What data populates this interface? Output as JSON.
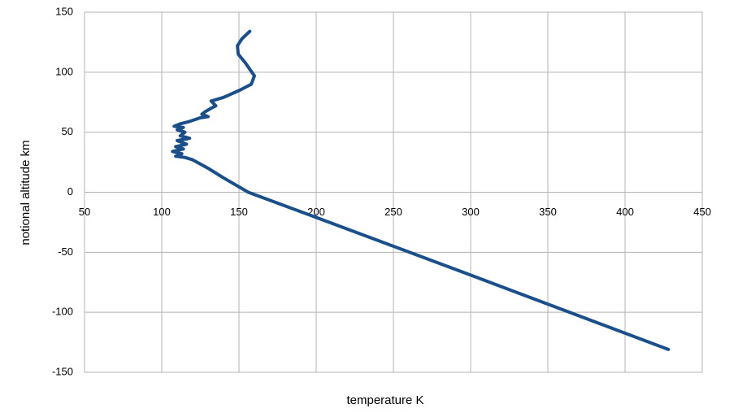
{
  "chart_data": {
    "type": "line",
    "x_label": "temperature K",
    "y_label": "notional altitude km",
    "x": [
      157,
      152,
      149,
      149.5,
      154,
      160,
      158,
      150.5,
      140,
      132,
      135,
      132,
      128,
      126,
      130,
      125,
      118,
      112,
      108,
      114,
      110,
      115,
      112,
      118,
      110,
      116,
      109,
      114,
      107,
      113,
      109,
      115,
      120,
      130,
      140,
      156,
      200,
      300,
      428
    ],
    "values": [
      134,
      128,
      122,
      115,
      108,
      97,
      90,
      85,
      79,
      76,
      72,
      70,
      67,
      65,
      63,
      62,
      59,
      57,
      55,
      54,
      52,
      50,
      47,
      45,
      43,
      40,
      38,
      36,
      34,
      32,
      30,
      29,
      27,
      20,
      12,
      0,
      -21,
      -69,
      -131
    ],
    "color": "#1b4f8a",
    "xlim": [
      50,
      450
    ],
    "xticks": [
      50,
      100,
      150,
      200,
      250,
      300,
      350,
      400,
      450
    ],
    "ylim": [
      -150,
      150
    ],
    "yticks": [
      -150,
      -100,
      -50,
      0,
      50,
      100,
      150
    ],
    "grid": true
  }
}
